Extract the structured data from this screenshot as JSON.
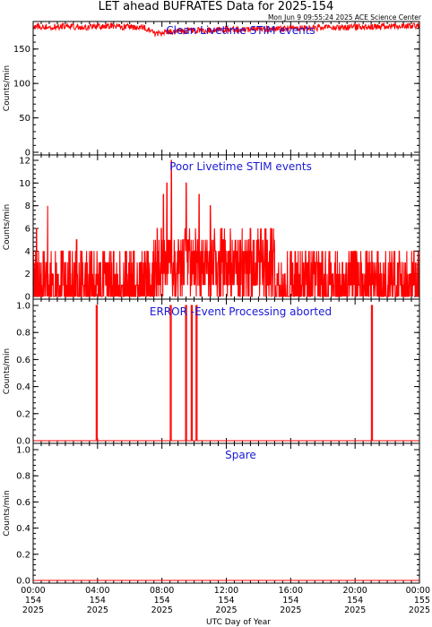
{
  "title": "LET ahead BUFRATES Data for 2025-154",
  "timestamp": "Mon Jun  9 09:55:24 2025 ACE Science Center",
  "xlabel": "UTC Day of Year",
  "colors": {
    "series": "#ff0000",
    "panel_title": "#1a1ad6",
    "axis": "#000000"
  },
  "x_ticks": [
    {
      "time": "00:00",
      "doy": "154",
      "year": "2025"
    },
    {
      "time": "04:00",
      "doy": "154",
      "year": "2025"
    },
    {
      "time": "08:00",
      "doy": "154",
      "year": "2025"
    },
    {
      "time": "12:00",
      "doy": "154",
      "year": "2025"
    },
    {
      "time": "16:00",
      "doy": "154",
      "year": "2025"
    },
    {
      "time": "20:00",
      "doy": "154",
      "year": "2025"
    },
    {
      "time": "00:00",
      "doy": "155",
      "year": "2025"
    }
  ],
  "chart_data": [
    {
      "type": "line",
      "title": "Clean Livetime STIM events",
      "ylabel": "Counts/min",
      "xlim_hours": [
        0,
        24
      ],
      "ylim": [
        0,
        190
      ],
      "y_ticks": [
        "0",
        "50",
        "100",
        "150"
      ],
      "y_tick_values": [
        0,
        50,
        100,
        150
      ],
      "series": [
        {
          "x_hours": [
            0,
            1,
            2,
            3,
            4,
            5,
            6,
            7,
            7.5,
            8,
            9,
            10,
            11,
            12,
            13,
            14,
            15,
            16,
            17,
            18,
            19,
            20,
            21,
            22,
            23,
            24
          ],
          "values": [
            183,
            182,
            183,
            182,
            182,
            183,
            182,
            181,
            172,
            174,
            176,
            177,
            177,
            178,
            178,
            179,
            179,
            180,
            180,
            181,
            181,
            182,
            182,
            183,
            183,
            184
          ]
        }
      ]
    },
    {
      "type": "line",
      "title": "Poor Livetime STIM events",
      "ylabel": "Counts/min",
      "xlim_hours": [
        0,
        24
      ],
      "ylim": [
        0,
        12
      ],
      "y_ticks": [
        "0",
        "2",
        "4",
        "6",
        "8",
        "10",
        "12"
      ],
      "y_tick_values": [
        0,
        2,
        4,
        6,
        8,
        10,
        12
      ],
      "series": [
        {
          "x_hours": [
            0.2,
            0.9,
            2.7,
            7.7,
            8.1,
            8.3,
            8.6,
            9.5,
            10.3,
            11.0,
            13.5
          ],
          "values": [
            6,
            8,
            5,
            6,
            9,
            10,
            12,
            10,
            9,
            8,
            6
          ]
        }
      ]
    },
    {
      "type": "line",
      "title": "ERROR -Event Processing aborted",
      "ylabel": "Counts/min",
      "xlim_hours": [
        0,
        24
      ],
      "ylim": [
        0,
        1
      ],
      "y_ticks": [
        "0.0",
        "0.2",
        "0.4",
        "0.6",
        "0.8",
        "1.0"
      ],
      "y_tick_values": [
        0,
        0.2,
        0.4,
        0.6,
        0.8,
        1.0
      ],
      "series": [
        {
          "x_hours": [
            3.95,
            8.55,
            9.5,
            9.85,
            10.15,
            21.05
          ],
          "values": [
            1,
            1,
            1,
            1,
            1,
            1
          ]
        }
      ]
    },
    {
      "type": "line",
      "title": "Spare",
      "ylabel": "Counts/min",
      "xlim_hours": [
        0,
        24
      ],
      "ylim": [
        0,
        1
      ],
      "y_ticks": [
        "0.0",
        "0.2",
        "0.4",
        "0.6",
        "0.8",
        "1.0"
      ],
      "y_tick_values": [
        0,
        0.2,
        0.4,
        0.6,
        0.8,
        1.0
      ],
      "series": [
        {
          "x_hours": [
            0,
            24
          ],
          "values": [
            0,
            0
          ]
        }
      ]
    }
  ]
}
